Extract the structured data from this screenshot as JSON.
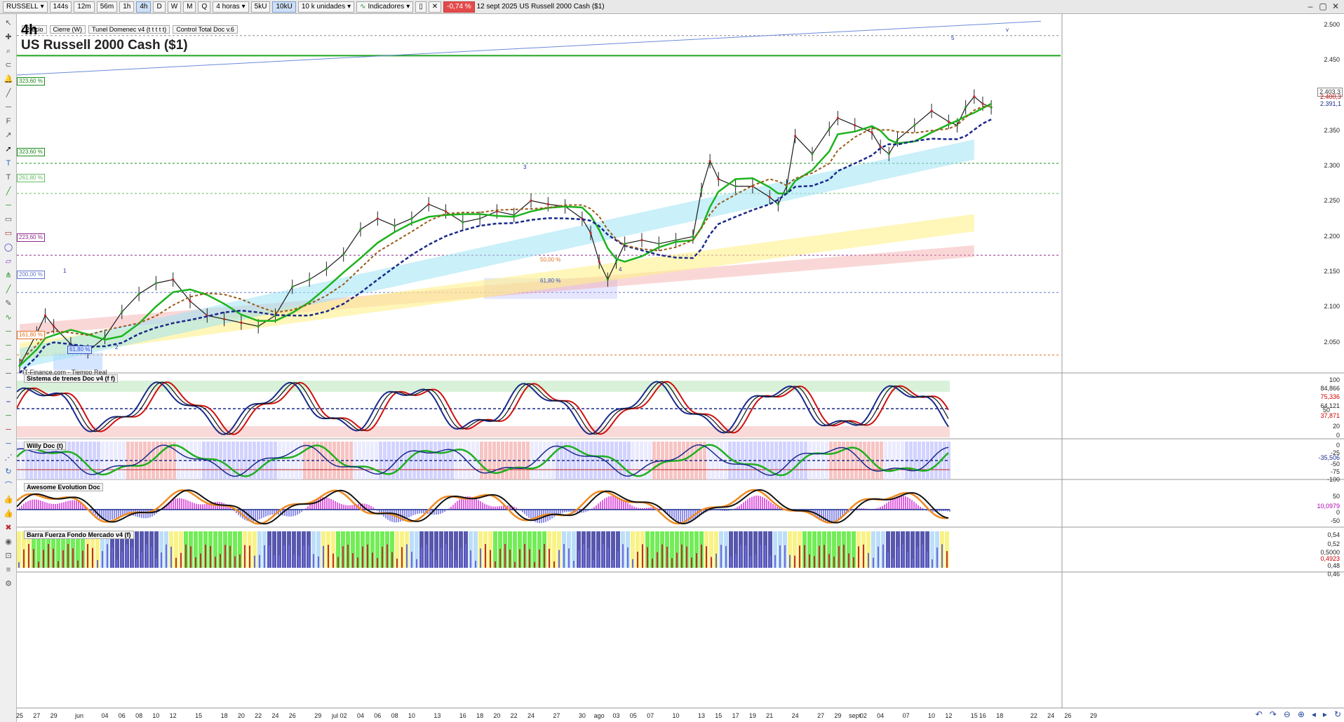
{
  "toolbar": {
    "symbol": "RUSSELL",
    "speed": "144s",
    "timeframes": [
      "12m",
      "56m",
      "1h",
      "4h",
      "D",
      "W",
      "M",
      "Q"
    ],
    "active_timeframe": "4h",
    "period_select": "4 horas",
    "units": [
      "5kU",
      "10kU"
    ],
    "active_unit": "10kU",
    "units_select": "10 k unidades",
    "indicators_label": "Indicadores",
    "change": "-0,74 %",
    "date": "12 sept 2025",
    "instrument": "US Russell 2000 Cash ($1)"
  },
  "legend": {
    "items": [
      "Precio",
      "Cierre (W)",
      "Tunel Domenec v4 (t t t t t)",
      "Control Total Doc v.6"
    ]
  },
  "main": {
    "timeframe_label": "4h",
    "instrument_title": "US Russell 2000 Cash ($1)",
    "feed_label": "IT-Finance.com - Tiempo Real",
    "fib_levels": [
      {
        "label": "323,60 %",
        "color": "#1a8a1a"
      },
      {
        "label": "323,60 %",
        "color": "#1a8a1a"
      },
      {
        "label": "261,80 %",
        "color": "#66bb66"
      },
      {
        "label": "223,60 %",
        "color": "#8a2a8a"
      },
      {
        "label": "200,00 %",
        "color": "#6677cc"
      },
      {
        "label": "161,80 %",
        "color": "#e07020"
      },
      {
        "label": "61,80 %",
        "color": "#3355cc"
      }
    ],
    "retrace_labels": [
      {
        "label": "50,00 %",
        "color": "#e07020"
      },
      {
        "label": "61,80 %",
        "color": "#3355cc"
      }
    ],
    "waves": [
      "1",
      "2",
      "3",
      "4",
      "5",
      "v"
    ],
    "y_axis": [
      "2.500",
      "2.450",
      "2.400",
      "2.350",
      "2.300",
      "2.250",
      "2.200",
      "2.150",
      "2.100",
      "2.050"
    ],
    "price_labels": [
      {
        "label": "2.403,3",
        "color": "#333333"
      },
      {
        "label": "2.400,3",
        "color": "#cc0000"
      },
      {
        "label": "2.391,1",
        "color": "#1a2a8a"
      }
    ]
  },
  "panes": [
    {
      "title": "Sistema de trenes Doc v4 (f f)",
      "axis": [
        "100",
        "84,866",
        "75,336",
        "64,121",
        "50",
        "37,871",
        "20",
        "0"
      ]
    },
    {
      "title": "Willy Doc (t)",
      "axis": [
        "0",
        "-25",
        "-35,506",
        "-50",
        "-75",
        "-100"
      ]
    },
    {
      "title": "Awesome Evolution Doc",
      "axis": [
        "50",
        "10,0979",
        "0",
        "-50"
      ]
    },
    {
      "title": "Barra Fuerza Fondo Mercado v4 (f)",
      "axis": [
        "0,54",
        "0,52",
        "0,5000",
        "0,4923",
        "0,48",
        "0,46"
      ]
    }
  ],
  "x_axis": [
    {
      "label": "25",
      "day": 0
    },
    {
      "label": "27",
      "day": 2
    },
    {
      "label": "29",
      "day": 4
    },
    {
      "label": "jun",
      "day": 7
    },
    {
      "label": "04",
      "day": 10
    },
    {
      "label": "06",
      "day": 12
    },
    {
      "label": "08",
      "day": 14
    },
    {
      "label": "10",
      "day": 16
    },
    {
      "label": "12",
      "day": 18
    },
    {
      "label": "15",
      "day": 21
    },
    {
      "label": "18",
      "day": 24
    },
    {
      "label": "20",
      "day": 26
    },
    {
      "label": "22",
      "day": 28
    },
    {
      "label": "24",
      "day": 30
    },
    {
      "label": "26",
      "day": 32
    },
    {
      "label": "29",
      "day": 35
    },
    {
      "label": "jul",
      "day": 37
    },
    {
      "label": "02",
      "day": 38
    },
    {
      "label": "04",
      "day": 40
    },
    {
      "label": "06",
      "day": 42
    },
    {
      "label": "08",
      "day": 44
    },
    {
      "label": "10",
      "day": 46
    },
    {
      "label": "13",
      "day": 49
    },
    {
      "label": "16",
      "day": 52
    },
    {
      "label": "18",
      "day": 54
    },
    {
      "label": "20",
      "day": 56
    },
    {
      "label": "22",
      "day": 58
    },
    {
      "label": "24",
      "day": 60
    },
    {
      "label": "27",
      "day": 63
    },
    {
      "label": "30",
      "day": 66
    },
    {
      "label": "ago",
      "day": 68
    },
    {
      "label": "03",
      "day": 70
    },
    {
      "label": "05",
      "day": 72
    },
    {
      "label": "07",
      "day": 74
    },
    {
      "label": "10",
      "day": 77
    },
    {
      "label": "13",
      "day": 80
    },
    {
      "label": "15",
      "day": 82
    },
    {
      "label": "17",
      "day": 84
    },
    {
      "label": "19",
      "day": 86
    },
    {
      "label": "21",
      "day": 88
    },
    {
      "label": "24",
      "day": 91
    },
    {
      "label": "27",
      "day": 94
    },
    {
      "label": "29",
      "day": 96
    },
    {
      "label": "sept",
      "day": 98
    },
    {
      "label": "02",
      "day": 99
    },
    {
      "label": "04",
      "day": 101
    },
    {
      "label": "07",
      "day": 104
    },
    {
      "label": "10",
      "day": 107
    },
    {
      "label": "12",
      "day": 109
    },
    {
      "label": "15",
      "day": 112
    },
    {
      "label": "16",
      "day": 113
    },
    {
      "label": "18",
      "day": 115
    },
    {
      "label": "22",
      "day": 119
    },
    {
      "label": "24",
      "day": 121
    },
    {
      "label": "26",
      "day": 123
    },
    {
      "label": "29",
      "day": 126
    }
  ],
  "chart_data": {
    "type": "line",
    "ylim": [
      2030,
      2530
    ],
    "x_unit": "day (0 = 25 may 2025)",
    "series": [
      {
        "values": [
          [
            0,
            2040
          ],
          [
            2,
            2085
          ],
          [
            3,
            2110
          ],
          [
            4,
            2095
          ],
          [
            6,
            2070
          ],
          [
            8,
            2060
          ],
          [
            10,
            2080
          ],
          [
            12,
            2115
          ],
          [
            14,
            2140
          ],
          [
            16,
            2155
          ],
          [
            18,
            2160
          ],
          [
            20,
            2130
          ],
          [
            22,
            2110
          ],
          [
            24,
            2105
          ],
          [
            26,
            2100
          ],
          [
            28,
            2095
          ],
          [
            30,
            2110
          ],
          [
            32,
            2150
          ],
          [
            34,
            2160
          ],
          [
            36,
            2175
          ],
          [
            38,
            2195
          ],
          [
            40,
            2230
          ],
          [
            42,
            2245
          ],
          [
            44,
            2235
          ],
          [
            46,
            2245
          ],
          [
            48,
            2265
          ],
          [
            50,
            2255
          ],
          [
            52,
            2240
          ],
          [
            54,
            2245
          ],
          [
            56,
            2255
          ],
          [
            58,
            2250
          ],
          [
            60,
            2270
          ],
          [
            62,
            2265
          ],
          [
            64,
            2262
          ],
          [
            66,
            2245
          ],
          [
            67,
            2225
          ],
          [
            68,
            2185
          ],
          [
            69,
            2160
          ],
          [
            70,
            2185
          ],
          [
            71,
            2210
          ],
          [
            73,
            2215
          ],
          [
            75,
            2210
          ],
          [
            77,
            2215
          ],
          [
            79,
            2220
          ],
          [
            80,
            2285
          ],
          [
            81,
            2325
          ],
          [
            82,
            2300
          ],
          [
            84,
            2290
          ],
          [
            86,
            2290
          ],
          [
            88,
            2275
          ],
          [
            89,
            2265
          ],
          [
            90,
            2290
          ],
          [
            91,
            2360
          ],
          [
            93,
            2335
          ],
          [
            95,
            2370
          ],
          [
            96,
            2385
          ],
          [
            98,
            2375
          ],
          [
            100,
            2365
          ],
          [
            101,
            2345
          ],
          [
            102,
            2335
          ],
          [
            103,
            2355
          ],
          [
            105,
            2375
          ],
          [
            107,
            2395
          ],
          [
            109,
            2380
          ],
          [
            110,
            2375
          ],
          [
            111,
            2400
          ],
          [
            112,
            2415
          ],
          [
            113,
            2405
          ],
          [
            114,
            2400
          ]
        ]
      }
    ]
  }
}
